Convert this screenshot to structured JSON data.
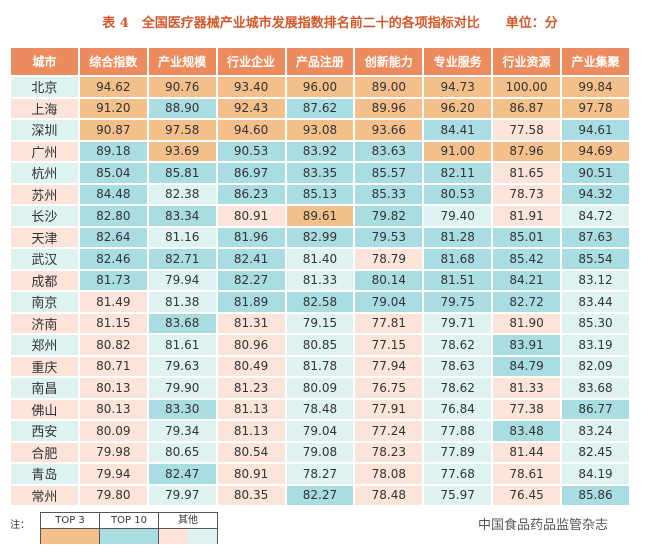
{
  "title": "表 4　全国医疗器械产业城市发展指数排名前二十的各项指标对比",
  "unit": "单位：分",
  "table": {
    "header": [
      "城市",
      "综合指数",
      "产业规模",
      "行业企业",
      "产品注册",
      "创新能力",
      "专业服务",
      "行业资源",
      "产业集聚"
    ],
    "rows": [
      [
        "北京",
        "94.62",
        "90.76",
        "93.40",
        "96.00",
        "89.00",
        "94.73",
        "100.00",
        "99.84"
      ],
      [
        "上海",
        "91.20",
        "88.90",
        "92.43",
        "87.62",
        "89.96",
        "96.20",
        "86.87",
        "97.78"
      ],
      [
        "深圳",
        "90.87",
        "97.58",
        "94.60",
        "93.08",
        "93.66",
        "84.41",
        "77.58",
        "94.61"
      ],
      [
        "广州",
        "89.18",
        "93.69",
        "90.53",
        "83.92",
        "83.63",
        "91.00",
        "87.96",
        "94.69"
      ],
      [
        "杭州",
        "85.04",
        "85.81",
        "86.97",
        "83.35",
        "85.57",
        "82.11",
        "81.65",
        "90.51"
      ],
      [
        "苏州",
        "84.48",
        "82.38",
        "86.23",
        "85.13",
        "85.33",
        "80.53",
        "78.73",
        "94.32"
      ],
      [
        "长沙",
        "82.80",
        "83.34",
        "80.91",
        "89.61",
        "79.82",
        "79.40",
        "81.91",
        "84.72"
      ],
      [
        "天津",
        "82.64",
        "81.16",
        "81.96",
        "82.99",
        "79.53",
        "81.28",
        "85.01",
        "87.63"
      ],
      [
        "武汉",
        "82.46",
        "82.71",
        "82.41",
        "81.40",
        "78.79",
        "81.68",
        "85.42",
        "85.54"
      ],
      [
        "成都",
        "81.73",
        "79.94",
        "82.27",
        "81.33",
        "80.14",
        "81.51",
        "84.21",
        "83.12"
      ],
      [
        "南京",
        "81.49",
        "81.38",
        "81.89",
        "82.58",
        "79.04",
        "79.75",
        "82.72",
        "83.44"
      ],
      [
        "济南",
        "81.15",
        "83.68",
        "81.31",
        "79.15",
        "77.81",
        "79.71",
        "81.90",
        "85.30"
      ],
      [
        "郑州",
        "80.82",
        "81.61",
        "80.96",
        "80.85",
        "77.15",
        "78.62",
        "83.91",
        "83.19"
      ],
      [
        "重庆",
        "80.71",
        "79.63",
        "80.49",
        "81.78",
        "77.94",
        "78.63",
        "84.79",
        "82.09"
      ],
      [
        "南昌",
        "80.13",
        "79.90",
        "81.23",
        "80.09",
        "76.75",
        "78.62",
        "81.33",
        "83.68"
      ],
      [
        "佛山",
        "80.13",
        "83.30",
        "81.13",
        "78.48",
        "77.91",
        "76.84",
        "77.38",
        "86.77"
      ],
      [
        "西安",
        "80.09",
        "79.34",
        "81.13",
        "79.04",
        "77.24",
        "77.88",
        "83.48",
        "83.24"
      ],
      [
        "合肥",
        "79.98",
        "80.65",
        "80.54",
        "79.08",
        "78.23",
        "77.89",
        "81.44",
        "82.45"
      ],
      [
        "青岛",
        "79.94",
        "82.47",
        "80.91",
        "78.27",
        "78.08",
        "77.68",
        "78.61",
        "84.19"
      ],
      [
        "常州",
        "79.80",
        "79.97",
        "80.35",
        "82.27",
        "78.48",
        "75.97",
        "76.45",
        "85.86"
      ]
    ]
  },
  "legend": {
    "note": "注：",
    "items": [
      "TOP 3",
      "TOP 10",
      "其他"
    ]
  },
  "watermark": "中国食品药品监管杂志"
}
